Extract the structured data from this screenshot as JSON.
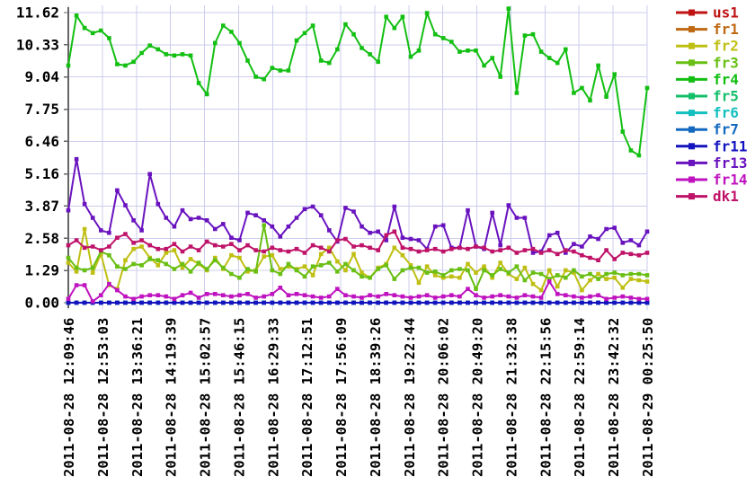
{
  "chart_data": {
    "type": "line",
    "title": "",
    "xlabel": "",
    "ylabel": "",
    "grid": true,
    "legend_position": "right",
    "ylim": [
      0,
      11.94
    ],
    "y_tick_values": [
      0.0,
      1.29,
      2.58,
      3.87,
      5.16,
      6.46,
      7.75,
      9.04,
      10.33,
      11.62
    ],
    "y_tick_labels": [
      "0.00",
      "1.29",
      "2.58",
      "3.87",
      "5.16",
      "6.46",
      "7.75",
      "9.04",
      "10.33",
      "11.62"
    ],
    "x_tick_labels": [
      "2011-08-28 12:09:46",
      "2011-08-28 12:53:03",
      "2011-08-28 13:36:21",
      "2011-08-28 14:19:39",
      "2011-08-28 15:02:57",
      "2011-08-28 15:46:15",
      "2011-08-28 16:29:33",
      "2011-08-28 17:12:51",
      "2011-08-28 17:56:09",
      "2011-08-28 18:39:26",
      "2011-08-28 19:22:44",
      "2011-08-28 20:06:02",
      "2011-08-28 20:49:20",
      "2011-08-28 21:32:38",
      "2011-08-28 22:15:56",
      "2011-08-28 22:59:14",
      "2011-08-28 23:42:32",
      "2011-08-29 00:25:50"
    ],
    "colors": {
      "grid": "#ccccee",
      "axis": "#666666",
      "background": "#ffffff",
      "text": "#000000"
    },
    "series": [
      {
        "name": "us1",
        "color": "#bf1313",
        "constant": 0
      },
      {
        "name": "fr1",
        "color": "#bf6913",
        "constant": 0
      },
      {
        "name": "fr2",
        "color": "#bfbf13",
        "values": [
          1.6,
          1.25,
          2.95,
          1.2,
          1.95,
          0.7,
          0.55,
          1.7,
          2.15,
          2.25,
          1.8,
          1.5,
          2.0,
          2.1,
          1.4,
          1.75,
          1.55,
          1.3,
          1.8,
          1.35,
          1.9,
          1.8,
          1.25,
          1.3,
          1.85,
          1.9,
          1.35,
          1.45,
          1.35,
          1.45,
          1.1,
          1.95,
          2.2,
          1.65,
          1.3,
          1.95,
          1.2,
          1.0,
          1.4,
          1.55,
          2.2,
          1.9,
          1.5,
          0.8,
          1.45,
          1.1,
          1.0,
          1.05,
          1.0,
          1.55,
          1.2,
          1.45,
          1.0,
          1.6,
          1.15,
          0.95,
          1.4,
          0.75,
          0.5,
          1.3,
          0.65,
          1.3,
          1.2,
          0.5,
          0.9,
          1.15,
          0.95,
          1.0,
          0.6,
          0.95,
          0.9,
          0.85
        ]
      },
      {
        "name": "fr3",
        "color": "#69bf13",
        "values": [
          1.8,
          1.4,
          1.3,
          1.4,
          2.05,
          1.9,
          1.45,
          1.35,
          1.55,
          1.5,
          1.75,
          1.7,
          1.55,
          1.35,
          1.55,
          1.25,
          1.6,
          1.35,
          1.7,
          1.4,
          1.15,
          1.0,
          1.35,
          1.25,
          3.1,
          1.3,
          1.15,
          1.55,
          1.3,
          1.05,
          1.45,
          1.5,
          1.6,
          1.25,
          1.55,
          1.3,
          1.05,
          1.0,
          1.35,
          1.5,
          0.95,
          1.3,
          1.4,
          1.4,
          1.2,
          1.25,
          1.1,
          1.3,
          1.35,
          1.3,
          0.55,
          1.3,
          1.1,
          1.35,
          1.2,
          1.45,
          0.9,
          1.2,
          1.15,
          0.95,
          1.1,
          1.0,
          1.3,
          1.05,
          1.15,
          0.95,
          1.15,
          1.2,
          1.1,
          1.15,
          1.15,
          1.1
        ]
      },
      {
        "name": "fr4",
        "color": "#13bf13",
        "values": [
          9.5,
          11.5,
          11.0,
          10.8,
          10.9,
          10.6,
          9.55,
          9.5,
          9.65,
          10.0,
          10.3,
          10.15,
          9.95,
          9.9,
          9.95,
          9.9,
          8.8,
          8.35,
          10.4,
          11.1,
          10.85,
          10.4,
          9.7,
          9.05,
          8.95,
          9.4,
          9.3,
          9.3,
          10.5,
          10.8,
          11.1,
          9.7,
          9.6,
          10.15,
          11.15,
          10.75,
          10.2,
          9.95,
          9.65,
          11.45,
          11.0,
          11.45,
          9.85,
          10.1,
          11.6,
          10.75,
          10.6,
          10.45,
          10.05,
          10.1,
          10.1,
          9.5,
          9.8,
          9.05,
          11.78,
          8.4,
          10.7,
          10.75,
          10.05,
          9.8,
          9.6,
          10.15,
          8.4,
          8.6,
          8.1,
          9.5,
          8.25,
          9.15,
          6.85,
          6.1,
          5.9,
          8.6
        ]
      },
      {
        "name": "fr5",
        "color": "#13bf69",
        "constant": 0
      },
      {
        "name": "fr6",
        "color": "#13bfbf",
        "constant": 0
      },
      {
        "name": "fr7",
        "color": "#1369bf",
        "constant": 0
      },
      {
        "name": "fr11",
        "color": "#1313bf",
        "constant": 0
      },
      {
        "name": "fr13",
        "color": "#6913bf",
        "values": [
          3.7,
          5.75,
          3.95,
          3.4,
          2.9,
          2.8,
          4.5,
          3.9,
          3.3,
          2.9,
          5.15,
          3.95,
          3.4,
          3.05,
          3.7,
          3.35,
          3.4,
          3.3,
          2.95,
          3.15,
          2.6,
          2.5,
          3.6,
          3.5,
          3.3,
          3.05,
          2.65,
          3.05,
          3.4,
          3.75,
          3.85,
          3.5,
          2.9,
          2.45,
          3.8,
          3.65,
          3.05,
          2.8,
          2.85,
          2.5,
          3.85,
          2.6,
          2.55,
          2.5,
          2.15,
          3.05,
          3.1,
          2.2,
          2.2,
          3.7,
          2.25,
          2.15,
          3.6,
          2.3,
          3.9,
          3.4,
          3.4,
          2.0,
          2.05,
          2.7,
          2.8,
          2.0,
          2.35,
          2.25,
          2.65,
          2.55,
          2.95,
          3.0,
          2.4,
          2.5,
          2.3,
          2.85
        ]
      },
      {
        "name": "fr14",
        "color": "#bf13bf",
        "values": [
          0.15,
          0.7,
          0.7,
          0.05,
          0.3,
          0.75,
          0.5,
          0.25,
          0.15,
          0.25,
          0.3,
          0.3,
          0.25,
          0.15,
          0.3,
          0.4,
          0.2,
          0.35,
          0.35,
          0.3,
          0.25,
          0.3,
          0.35,
          0.2,
          0.25,
          0.35,
          0.6,
          0.3,
          0.35,
          0.3,
          0.25,
          0.2,
          0.25,
          0.55,
          0.3,
          0.25,
          0.2,
          0.3,
          0.25,
          0.35,
          0.3,
          0.25,
          0.2,
          0.25,
          0.3,
          0.2,
          0.25,
          0.3,
          0.25,
          0.55,
          0.3,
          0.2,
          0.25,
          0.3,
          0.25,
          0.2,
          0.3,
          0.25,
          0.2,
          0.85,
          0.35,
          0.3,
          0.25,
          0.2,
          0.25,
          0.3,
          0.15,
          0.2,
          0.25,
          0.2,
          0.15,
          0.15
        ]
      },
      {
        "name": "dk1",
        "color": "#bf1369",
        "values": [
          2.3,
          2.5,
          2.2,
          2.25,
          2.1,
          2.25,
          2.6,
          2.75,
          2.4,
          2.5,
          2.3,
          2.15,
          2.15,
          2.35,
          2.05,
          2.25,
          2.1,
          2.45,
          2.3,
          2.25,
          2.35,
          2.1,
          2.3,
          2.1,
          2.05,
          2.2,
          2.1,
          2.05,
          2.15,
          2.0,
          2.3,
          2.2,
          2.05,
          2.5,
          2.55,
          2.25,
          2.3,
          2.2,
          2.1,
          2.7,
          2.85,
          2.2,
          2.15,
          2.05,
          2.1,
          2.15,
          2.05,
          2.15,
          2.2,
          2.15,
          2.25,
          2.2,
          2.05,
          2.1,
          2.2,
          2.0,
          2.1,
          2.15,
          2.0,
          2.1,
          1.95,
          2.1,
          2.05,
          1.9,
          1.8,
          1.7,
          2.1,
          1.75,
          2.0,
          1.95,
          1.9,
          2.0
        ]
      }
    ]
  }
}
